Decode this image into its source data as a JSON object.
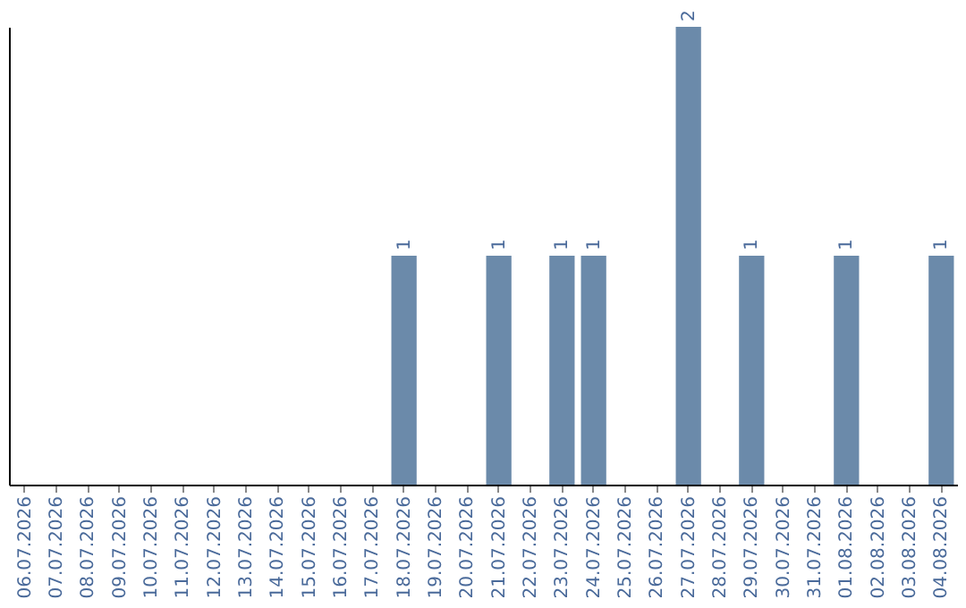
{
  "chart_data": {
    "type": "bar",
    "categories": [
      "06.07.2026",
      "07.07.2026",
      "08.07.2026",
      "09.07.2026",
      "10.07.2026",
      "11.07.2026",
      "12.07.2026",
      "13.07.2026",
      "14.07.2026",
      "15.07.2026",
      "16.07.2026",
      "17.07.2026",
      "18.07.2026",
      "19.07.2026",
      "20.07.2026",
      "21.07.2026",
      "22.07.2026",
      "23.07.2026",
      "24.07.2026",
      "25.07.2026",
      "26.07.2026",
      "27.07.2026",
      "28.07.2026",
      "29.07.2026",
      "30.07.2026",
      "31.07.2026",
      "01.08.2026",
      "02.08.2026",
      "03.08.2026",
      "04.08.2026"
    ],
    "values": [
      null,
      null,
      null,
      null,
      null,
      null,
      null,
      null,
      null,
      null,
      null,
      null,
      1,
      null,
      null,
      1,
      null,
      1,
      1,
      null,
      null,
      2,
      null,
      1,
      null,
      null,
      1,
      null,
      null,
      1
    ],
    "data_labels": true,
    "color": "#6b8aaa",
    "ylim": [
      0,
      2
    ],
    "tick_labels": "x",
    "grid": false
  }
}
